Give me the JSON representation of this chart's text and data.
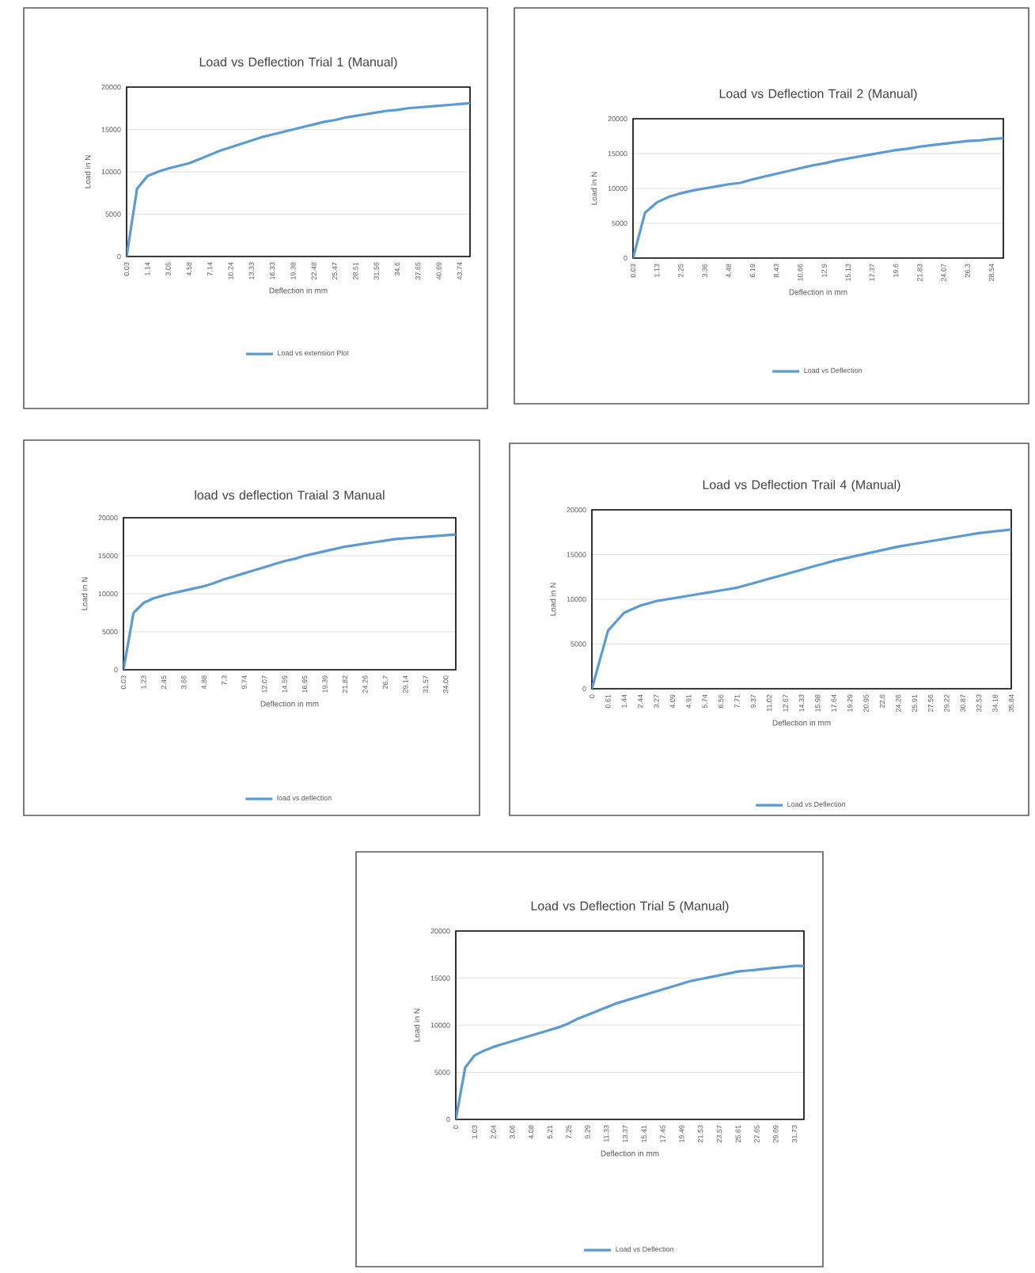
{
  "chart_data": [
    {
      "type": "line",
      "title": "Load vs Deflection Trial 1 (Manual)",
      "xlabel": "Deflection in mm",
      "ylabel": "Load in N",
      "grid": "y",
      "legend": "bottom",
      "ylim": [
        0,
        20000
      ],
      "yticks": [
        0,
        5000,
        10000,
        15000,
        20000
      ],
      "categories": [
        "0.03",
        null,
        "1.14",
        null,
        "3.05",
        null,
        "4.58",
        null,
        "7.14",
        null,
        "10.24",
        null,
        "13.33",
        null,
        "16.33",
        null,
        "19.38",
        null,
        "22.48",
        null,
        "25.47",
        null,
        "28.51",
        null,
        "31.56",
        null,
        "34.6",
        null,
        "37.65",
        null,
        "40.69",
        null,
        "43.74",
        null
      ],
      "series": [
        {
          "name": "Load vs extension Plot",
          "color": "#5b9bd5",
          "values": [
            0,
            8000,
            9500,
            10000,
            10400,
            10700,
            11000,
            11500,
            12000,
            12500,
            12900,
            13300,
            13700,
            14100,
            14400,
            14700,
            15000,
            15300,
            15600,
            15900,
            16100,
            16400,
            16600,
            16800,
            17000,
            17200,
            17300,
            17500,
            17600,
            17700,
            17800,
            17900,
            18000,
            18100
          ]
        }
      ]
    },
    {
      "type": "line",
      "title": "Load vs Deflection Trail 2 (Manual)",
      "xlabel": "Deflection in mm",
      "ylabel": "Load in N",
      "grid": "y",
      "legend": "bottom",
      "ylim": [
        0,
        20000
      ],
      "yticks": [
        0,
        5000,
        10000,
        15000,
        20000
      ],
      "categories": [
        "0.03",
        null,
        "1.13",
        null,
        "2.25",
        null,
        "3.36",
        null,
        "4.48",
        null,
        "6.19",
        null,
        "8.43",
        null,
        "10.66",
        null,
        "12.9",
        null,
        "15.13",
        null,
        "17.37",
        null,
        "19.6",
        null,
        "21.83",
        null,
        "24.07",
        null,
        "26.3",
        null,
        "28.54",
        null
      ],
      "series": [
        {
          "name": "Load vs Deflection",
          "color": "#5b9bd5",
          "values": [
            0,
            6500,
            8000,
            8800,
            9300,
            9700,
            10000,
            10300,
            10600,
            10800,
            11300,
            11700,
            12100,
            12500,
            12900,
            13300,
            13600,
            14000,
            14300,
            14600,
            14900,
            15200,
            15500,
            15700,
            16000,
            16200,
            16400,
            16600,
            16800,
            16900,
            17100,
            17200
          ]
        }
      ]
    },
    {
      "type": "line",
      "title": "load vs deflection Traial 3 Manual",
      "xlabel": "Deflection in mm",
      "ylabel": "Load in N",
      "grid": "y",
      "legend": "bottom",
      "ylim": [
        0,
        20000
      ],
      "yticks": [
        0,
        5000,
        10000,
        15000,
        20000
      ],
      "categories": [
        "0.03",
        null,
        "1.23",
        null,
        "2.45",
        null,
        "3.66",
        null,
        "4.88",
        null,
        "7.3",
        null,
        "9.74",
        null,
        "12.07",
        null,
        "14.59",
        null,
        "16.95",
        null,
        "19.39",
        null,
        "21.82",
        null,
        "24.26",
        null,
        "26.7",
        null,
        "29.14",
        null,
        "31.57",
        null,
        "34.00",
        null
      ],
      "series": [
        {
          "name": "load vs deflection",
          "color": "#5b9bd5",
          "values": [
            0,
            7500,
            8800,
            9400,
            9800,
            10100,
            10400,
            10700,
            11000,
            11400,
            11900,
            12300,
            12700,
            13100,
            13500,
            13900,
            14300,
            14600,
            15000,
            15300,
            15600,
            15900,
            16200,
            16400,
            16600,
            16800,
            17000,
            17200,
            17300,
            17400,
            17500,
            17600,
            17700,
            17800
          ]
        }
      ]
    },
    {
      "type": "line",
      "title": "Load vs Deflection Trail 4  (Manual)",
      "xlabel": "Deflection in mm",
      "ylabel": "Load in N",
      "grid": "y",
      "legend": "bottom",
      "ylim": [
        0,
        20000
      ],
      "yticks": [
        0,
        5000,
        10000,
        15000,
        20000
      ],
      "categories": [
        "0",
        "0.61",
        "1.44",
        "2.44",
        "3.27",
        "4.09",
        "4.91",
        "5.74",
        "6.56",
        "7.71",
        "9.37",
        "11.02",
        "12.67",
        "14.33",
        "15.98",
        "17.64",
        "19.29",
        "20.95",
        "22.6",
        "24.26",
        "25.91",
        "27.56",
        "29.22",
        "30.87",
        "32.53",
        "34.18",
        "35.84"
      ],
      "series": [
        {
          "name": "Load vs Deflection",
          "color": "#5b9bd5",
          "values": [
            0,
            6500,
            8500,
            9300,
            9800,
            10100,
            10400,
            10700,
            11000,
            11300,
            11800,
            12300,
            12800,
            13300,
            13800,
            14300,
            14700,
            15100,
            15500,
            15900,
            16200,
            16500,
            16800,
            17100,
            17400,
            17600,
            17800
          ]
        }
      ]
    },
    {
      "type": "line",
      "title": "Load vs Deflection Trial 5 (Manual)",
      "xlabel": "Deflection in mm",
      "ylabel": "Load in N",
      "grid": "y",
      "legend": "bottom",
      "ylim": [
        0,
        20000
      ],
      "yticks": [
        0,
        5000,
        10000,
        15000,
        20000
      ],
      "categories": [
        "0",
        null,
        "1.03",
        null,
        "2.04",
        null,
        "3.06",
        null,
        "4.08",
        null,
        "5.21",
        null,
        "7.25",
        null,
        "9.29",
        null,
        "11.33",
        null,
        "13.37",
        null,
        "15.41",
        null,
        "17.45",
        null,
        "19.49",
        null,
        "21.53",
        null,
        "23.57",
        null,
        "25.61",
        null,
        "27.65",
        null,
        "29.69",
        null,
        "31.73",
        null
      ],
      "series": [
        {
          "name": "Load vs Deflection",
          "color": "#5b9bd5",
          "values": [
            0,
            5500,
            6800,
            7300,
            7700,
            8000,
            8300,
            8600,
            8900,
            9200,
            9500,
            9800,
            10200,
            10700,
            11100,
            11500,
            11900,
            12300,
            12600,
            12900,
            13200,
            13500,
            13800,
            14100,
            14400,
            14700,
            14900,
            15100,
            15300,
            15500,
            15700,
            15800,
            15900,
            16000,
            16100,
            16200,
            16300,
            16300
          ]
        }
      ]
    }
  ]
}
